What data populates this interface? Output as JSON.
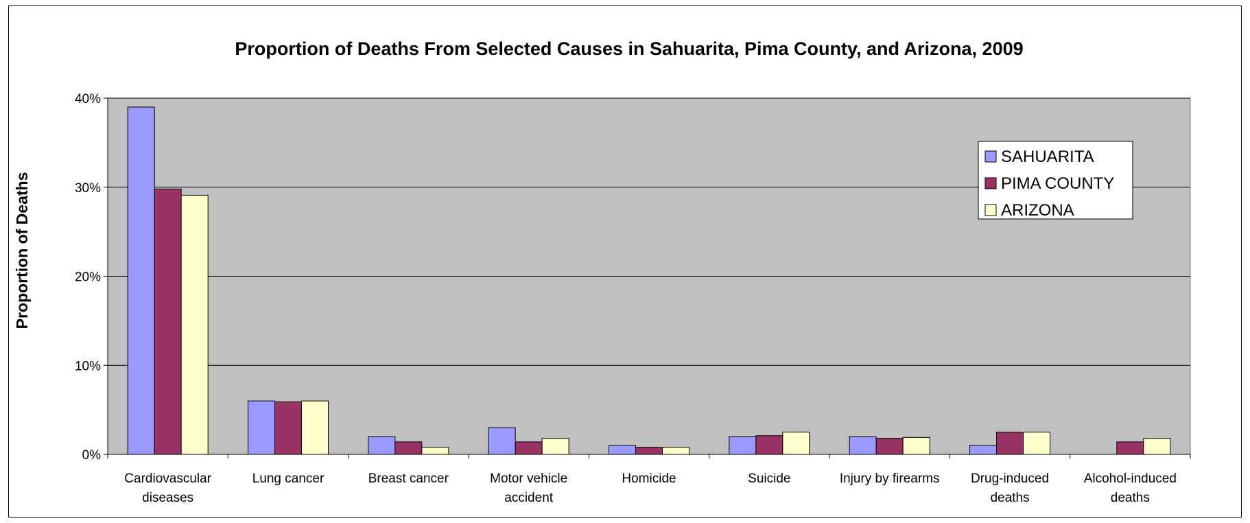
{
  "colors": {
    "plot_background": "#c0c0c0",
    "gridline": "#000000",
    "sahuarita": "#9999ff",
    "pima_county": "#993366",
    "arizona": "#ffffcc"
  },
  "chart_data": {
    "type": "bar",
    "title": "Proportion of Deaths From Selected Causes in Sahuarita, Pima County, and Arizona, 2009",
    "xlabel": "",
    "ylabel": "Proportion of Deaths",
    "ylim": [
      0,
      40
    ],
    "yticks": [
      "0%",
      "10%",
      "20%",
      "30%",
      "40%"
    ],
    "grid": true,
    "legend_position": "top-right",
    "categories": [
      [
        "Cardiovascular",
        "diseases"
      ],
      [
        "Lung cancer"
      ],
      [
        "Breast cancer"
      ],
      [
        "Motor vehicle",
        "accident"
      ],
      [
        "Homicide"
      ],
      [
        "Suicide"
      ],
      [
        "Injury by firearms"
      ],
      [
        "Drug-induced",
        "deaths"
      ],
      [
        "Alcohol-induced",
        "deaths"
      ]
    ],
    "series": [
      {
        "name": "SAHUARITA",
        "color": "#9999ff",
        "values": [
          39.0,
          6.0,
          2.0,
          3.0,
          1.0,
          2.0,
          2.0,
          1.0,
          0.0
        ]
      },
      {
        "name": "PIMA COUNTY",
        "color": "#993366",
        "values": [
          29.8,
          5.9,
          1.4,
          1.4,
          0.8,
          2.1,
          1.8,
          2.5,
          1.4
        ]
      },
      {
        "name": "ARIZONA",
        "color": "#ffffcc",
        "values": [
          29.1,
          6.0,
          0.8,
          1.8,
          0.8,
          2.5,
          1.9,
          2.5,
          1.8
        ]
      }
    ]
  }
}
